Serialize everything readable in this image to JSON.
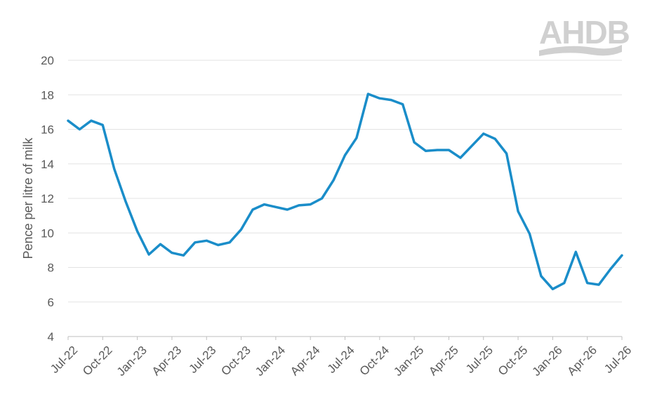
{
  "logo": {
    "text": "AHDB",
    "color": "#d0d0d0"
  },
  "chart_data": {
    "type": "line",
    "title": "",
    "xlabel": "",
    "ylabel": "Pence per litre of milk",
    "ylim": [
      4,
      20
    ],
    "yticks": [
      4,
      6,
      8,
      10,
      12,
      14,
      16,
      18,
      20
    ],
    "grid": true,
    "line_color": "#1a8dc9",
    "x_tick_labels": [
      "Jul-22",
      "Oct-22",
      "Jan-23",
      "Apr-23",
      "Jul-23",
      "Oct-23",
      "Jan-24",
      "Apr-24",
      "Jul-24",
      "Oct-24",
      "Jan-25",
      "Apr-25",
      "Jul-25",
      "Oct-25",
      "Jan-26",
      "Apr-26",
      "Jul-26"
    ],
    "x": [
      "Jul-22",
      "Aug-22",
      "Sep-22",
      "Oct-22",
      "Nov-22",
      "Dec-22",
      "Jan-23",
      "Feb-23",
      "Mar-23",
      "Apr-23",
      "May-23",
      "Jun-23",
      "Jul-23",
      "Aug-23",
      "Sep-23",
      "Oct-23",
      "Nov-23",
      "Dec-23",
      "Jan-24",
      "Feb-24",
      "Mar-24",
      "Apr-24",
      "May-24",
      "Jun-24",
      "Jul-24",
      "Aug-24",
      "Sep-24",
      "Oct-24",
      "Nov-24",
      "Dec-24",
      "Jan-25",
      "Feb-25",
      "Mar-25",
      "Apr-25",
      "May-25",
      "Jun-25",
      "Jul-25",
      "Aug-25",
      "Sep-25",
      "Oct-25",
      "Nov-25",
      "Dec-25",
      "Jan-26",
      "Feb-26",
      "Mar-26",
      "Apr-26",
      "May-26",
      "Jun-26",
      "Jul-26"
    ],
    "values": [
      16.5,
      16.0,
      16.5,
      16.25,
      13.7,
      11.8,
      10.1,
      8.75,
      9.35,
      8.85,
      8.7,
      9.45,
      9.55,
      9.3,
      9.45,
      10.2,
      11.35,
      11.65,
      11.5,
      11.35,
      11.6,
      11.65,
      12.0,
      13.05,
      14.5,
      15.5,
      18.05,
      17.8,
      17.7,
      17.45,
      15.25,
      14.75,
      14.8,
      14.8,
      14.35,
      15.05,
      15.75,
      15.45,
      14.6,
      11.25,
      9.95,
      7.5,
      6.75,
      7.1,
      8.9,
      7.1,
      7.0,
      7.9,
      8.7
    ]
  }
}
